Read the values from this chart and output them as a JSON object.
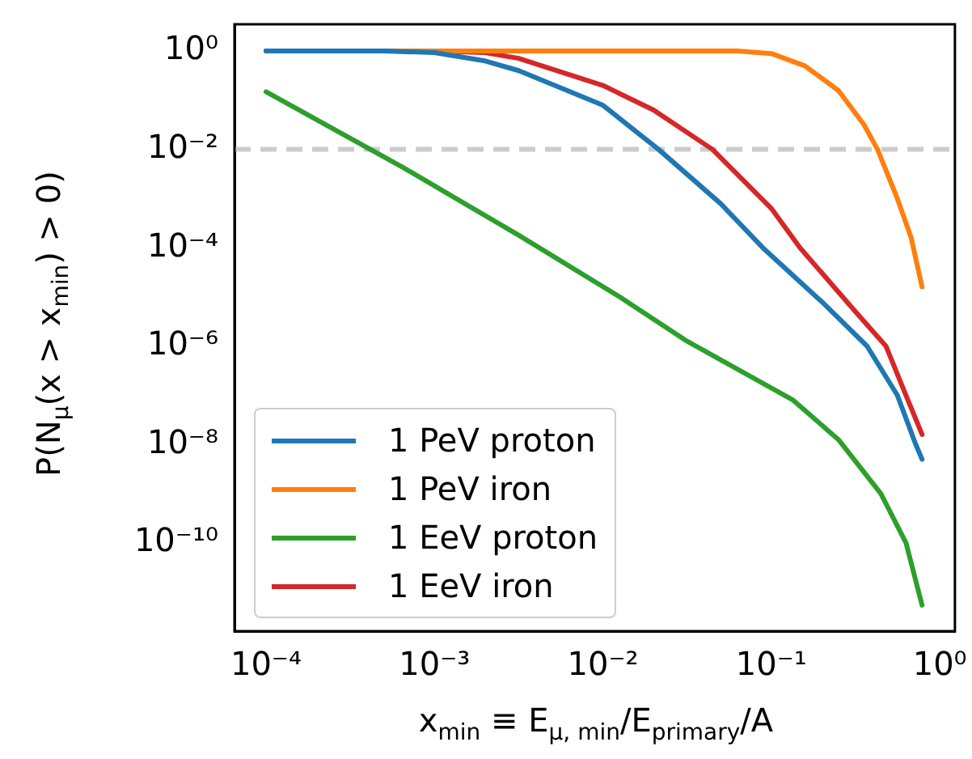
{
  "chart_data": {
    "type": "line",
    "xlabel": "x$_{min}$ ≡ E$_{μ, min}$/E$_{primary}$/A",
    "ylabel": "P(N$_{μ}$(x > x$_{min}$) > 0)",
    "log": "xy",
    "grid": false,
    "legend": "bottom left",
    "marker": "none",
    "line_style": "solid",
    "xlim": [
      6.5e-05,
      1.23
    ],
    "ylim": [
      1.6e-12,
      3.5
    ],
    "xticks": [
      {
        "value": 0.0001,
        "label": "10⁻⁴"
      },
      {
        "value": 0.001,
        "label": "10⁻³"
      },
      {
        "value": 0.01,
        "label": "10⁻²"
      },
      {
        "value": 0.1,
        "label": "10⁻¹"
      },
      {
        "value": 1,
        "label": "10⁰"
      }
    ],
    "yticks": [
      {
        "value": 1,
        "label": "10⁰"
      },
      {
        "value": 0.01,
        "label": "10⁻²"
      },
      {
        "value": 0.0001,
        "label": "10⁻⁴"
      },
      {
        "value": 1e-06,
        "label": "10⁻⁶"
      },
      {
        "value": 1e-08,
        "label": "10⁻⁸"
      },
      {
        "value": 1e-10,
        "label": "10⁻¹⁰"
      }
    ],
    "ref_lines": [
      {
        "axis": "y",
        "value": 0.01,
        "label": null,
        "color": "#cccccc",
        "line_style": "dashed"
      }
    ],
    "series": [
      {
        "name": "1 PeV proton",
        "color": "#1f77b4",
        "x": [
          0.0001,
          0.0005,
          0.001,
          0.002,
          0.00316,
          0.01,
          0.0214,
          0.05,
          0.089,
          0.2,
          0.37,
          0.56,
          0.72,
          0.785
        ],
        "values": [
          1,
          1,
          0.93,
          0.63,
          0.4,
          0.079,
          0.01,
          0.00079,
          0.0001,
          7.9e-06,
          1e-06,
          1e-07,
          1e-08,
          5e-09
        ]
      },
      {
        "name": "1 PeV iron",
        "color": "#ff7f0e",
        "x": [
          0.0001,
          0.063,
          0.1,
          0.158,
          0.25,
          0.355,
          0.427,
          0.56,
          0.676,
          0.785
        ],
        "values": [
          1,
          1,
          0.89,
          0.5,
          0.158,
          0.0316,
          0.01,
          0.001,
          0.00016,
          1.6e-05
        ]
      },
      {
        "name": "1 EeV proton",
        "color": "#2ca02c",
        "x": [
          0.0001,
          0.00065,
          0.00316,
          0.0126,
          0.0316,
          0.135,
          0.25,
          0.447,
          0.63,
          0.785
        ],
        "values": [
          0.148,
          0.0043,
          0.00018,
          1e-05,
          1.26e-06,
          7.9e-08,
          1.26e-08,
          1e-09,
          1e-10,
          5.4e-12
        ]
      },
      {
        "name": "1 EeV iron",
        "color": "#d62728",
        "x": [
          0.0001,
          0.001,
          0.002,
          0.00316,
          0.01,
          0.02,
          0.0447,
          0.1,
          0.148,
          0.316,
          0.479,
          0.63,
          0.785
        ],
        "values": [
          1,
          1,
          0.93,
          0.71,
          0.2,
          0.063,
          0.01,
          0.00063,
          0.0001,
          5e-06,
          1e-06,
          1e-07,
          1.6e-08
        ]
      }
    ]
  }
}
